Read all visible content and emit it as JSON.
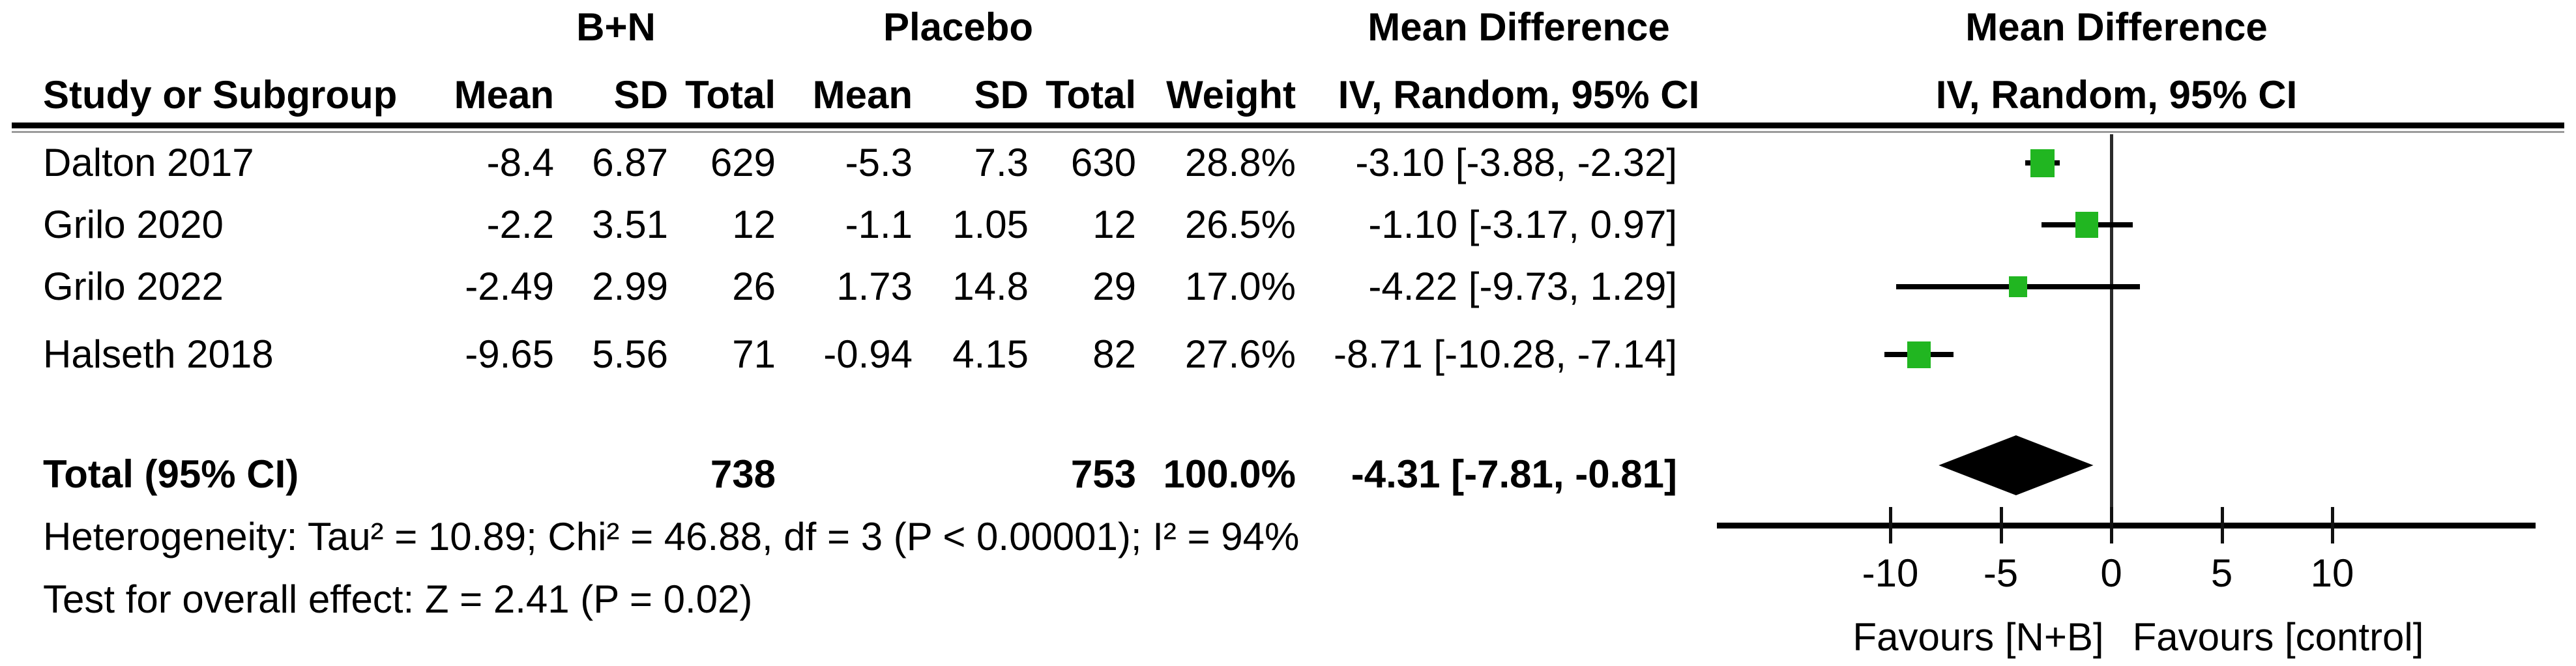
{
  "header": {
    "treatment_group": "B+N",
    "control_group": "Placebo",
    "effect_left": "Mean Difference",
    "effect_right": "Mean Difference",
    "columns": {
      "study": "Study or Subgroup",
      "mean": "Mean",
      "sd": "SD",
      "total": "Total",
      "weight": "Weight",
      "method": "IV, Random, 95% CI"
    }
  },
  "studies": [
    {
      "name": "Dalton 2017",
      "treatment_mean": "-8.4",
      "treatment_sd": "6.87",
      "treatment_total": "629",
      "control_mean": "-5.3",
      "control_sd": "7.3",
      "control_total": "630",
      "weight": "28.8%",
      "ci_text": "-3.10 [-3.88, -2.32]",
      "md": -3.1,
      "ci_low": -3.88,
      "ci_high": -2.32,
      "weight_pct": 28.8
    },
    {
      "name": "Grilo 2020",
      "treatment_mean": "-2.2",
      "treatment_sd": "3.51",
      "treatment_total": "12",
      "control_mean": "-1.1",
      "control_sd": "1.05",
      "control_total": "12",
      "weight": "26.5%",
      "ci_text": "-1.10 [-3.17, 0.97]",
      "md": -1.1,
      "ci_low": -3.17,
      "ci_high": 0.97,
      "weight_pct": 26.5
    },
    {
      "name": "Grilo 2022",
      "treatment_mean": "-2.49",
      "treatment_sd": "2.99",
      "treatment_total": "26",
      "control_mean": "1.73",
      "control_sd": "14.8",
      "control_total": "29",
      "weight": "17.0%",
      "ci_text": "-4.22 [-9.73, 1.29]",
      "md": -4.22,
      "ci_low": -9.73,
      "ci_high": 1.29,
      "weight_pct": 17.0
    },
    {
      "name": "Halseth 2018",
      "treatment_mean": "-9.65",
      "treatment_sd": "5.56",
      "treatment_total": "71",
      "control_mean": "-0.94",
      "control_sd": "4.15",
      "control_total": "82",
      "weight": "27.6%",
      "ci_text": "-8.71 [-10.28, -7.14]",
      "md": -8.71,
      "ci_low": -10.28,
      "ci_high": -7.14,
      "weight_pct": 27.6
    }
  ],
  "total": {
    "label": "Total (95% CI)",
    "treatment_total": "738",
    "control_total": "753",
    "weight": "100.0%",
    "ci_text": "-4.31 [-7.81, -0.81]",
    "md": -4.31,
    "ci_low": -7.81,
    "ci_high": -0.81
  },
  "footer": {
    "heterogeneity": "Heterogeneity: Tau² = 10.89; Chi² = 46.88, df = 3 (P < 0.00001); I² = 94%",
    "overall_effect": "Test for overall effect: Z = 2.41 (P = 0.02)"
  },
  "axis": {
    "ticks": [
      -10,
      -5,
      0,
      5,
      10
    ],
    "favours_left": "Favours [N+B]",
    "favours_right": "Favours [control]"
  },
  "colors": {
    "marker": "#21b621",
    "line": "#000000"
  },
  "chart_data": {
    "type": "forest",
    "title": "Mean Difference — IV, Random, 95% CI",
    "effect_measure": "Mean Difference",
    "model": "IV, Random, 95% CI",
    "x_ticks": [
      -10,
      -5,
      0,
      5,
      10
    ],
    "x_range": [
      -17.8,
      19.2
    ],
    "studies": [
      {
        "study": "Dalton 2017",
        "treatment": {
          "mean": -8.4,
          "sd": 6.87,
          "total": 629
        },
        "control": {
          "mean": -5.3,
          "sd": 7.3,
          "total": 630
        },
        "weight_pct": 28.8,
        "md": -3.1,
        "ci": [
          -3.88,
          -2.32
        ]
      },
      {
        "study": "Grilo 2020",
        "treatment": {
          "mean": -2.2,
          "sd": 3.51,
          "total": 12
        },
        "control": {
          "mean": -1.1,
          "sd": 1.05,
          "total": 12
        },
        "weight_pct": 26.5,
        "md": -1.1,
        "ci": [
          -3.17,
          0.97
        ]
      },
      {
        "study": "Grilo 2022",
        "treatment": {
          "mean": -2.49,
          "sd": 2.99,
          "total": 26
        },
        "control": {
          "mean": 1.73,
          "sd": 14.8,
          "total": 29
        },
        "weight_pct": 17.0,
        "md": -4.22,
        "ci": [
          -9.73,
          1.29
        ]
      },
      {
        "study": "Halseth 2018",
        "treatment": {
          "mean": -9.65,
          "sd": 5.56,
          "total": 71
        },
        "control": {
          "mean": -0.94,
          "sd": 4.15,
          "total": 82
        },
        "weight_pct": 27.6,
        "md": -8.71,
        "ci": [
          -10.28,
          -7.14
        ]
      }
    ],
    "summary": {
      "label": "Total (95% CI)",
      "treatment_total": 738,
      "control_total": 753,
      "weight_pct": 100.0,
      "md": -4.31,
      "ci": [
        -7.81,
        -0.81
      ]
    },
    "heterogeneity": {
      "tau2": 10.89,
      "chi2": 46.88,
      "df": 3,
      "p": "< 0.00001",
      "i2_pct": 94
    },
    "overall_effect": {
      "z": 2.41,
      "p": 0.02
    },
    "favours": [
      "Favours [N+B]",
      "Favours [control]"
    ]
  }
}
